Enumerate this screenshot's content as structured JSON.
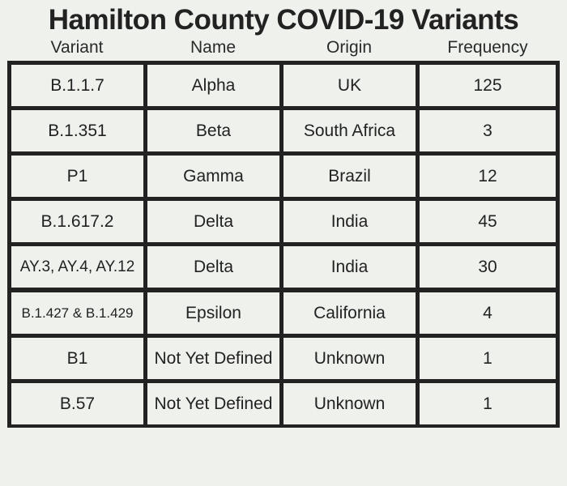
{
  "chart_data": {
    "type": "table",
    "title": "Hamilton County COVID-19 Variants",
    "columns": [
      "Variant",
      "Name",
      "Origin",
      "Frequency"
    ],
    "rows": [
      {
        "variant": "B.1.1.7",
        "name": "Alpha",
        "origin": "UK",
        "frequency": "125"
      },
      {
        "variant": "B.1.351",
        "name": "Beta",
        "origin": "South Africa",
        "frequency": "3"
      },
      {
        "variant": "P1",
        "name": "Gamma",
        "origin": "Brazil",
        "frequency": "12"
      },
      {
        "variant": "B.1.617.2",
        "name": "Delta",
        "origin": "India",
        "frequency": "45"
      },
      {
        "variant": "AY.3, AY.4, AY.12",
        "name": "Delta",
        "origin": "India",
        "frequency": "30"
      },
      {
        "variant": "B.1.427 & B.1.429",
        "name": "Epsilon",
        "origin": "California",
        "frequency": "4"
      },
      {
        "variant": "B1",
        "name": "Not Yet Defined",
        "origin": "Unknown",
        "frequency": "1"
      },
      {
        "variant": "B.57",
        "name": "Not Yet Defined",
        "origin": "Unknown",
        "frequency": "1"
      }
    ]
  },
  "colors": {
    "background": "#eef1ec",
    "border": "#222222",
    "text": "#222222"
  }
}
